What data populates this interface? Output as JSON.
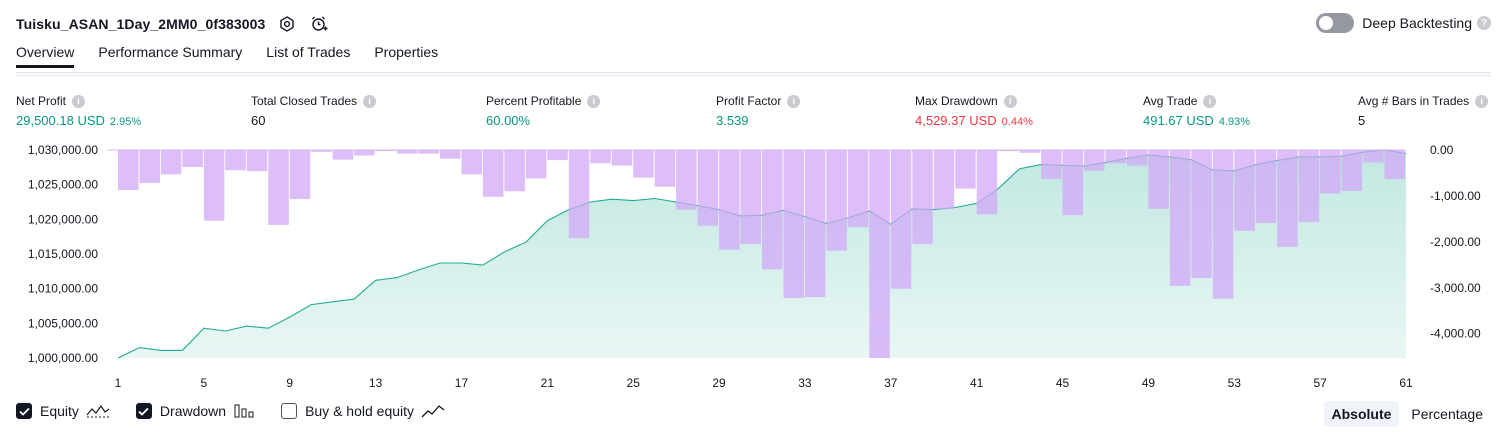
{
  "header": {
    "strategy_name": "Tuisku_ASAN_1Day_2MM0_0f383003",
    "deep_backtesting_label": "Deep Backtesting",
    "deep_backtesting_enabled": false
  },
  "tabs": [
    {
      "label": "Overview",
      "active": true
    },
    {
      "label": "Performance Summary",
      "active": false
    },
    {
      "label": "List of Trades",
      "active": false
    },
    {
      "label": "Properties",
      "active": false
    }
  ],
  "metrics": {
    "net_profit": {
      "label": "Net Profit",
      "value": "29,500.18 USD",
      "pct": "2.95%"
    },
    "total_closed_trades": {
      "label": "Total Closed Trades",
      "value": "60"
    },
    "percent_profitable": {
      "label": "Percent Profitable",
      "value": "60.00%"
    },
    "profit_factor": {
      "label": "Profit Factor",
      "value": "3.539"
    },
    "max_drawdown": {
      "label": "Max Drawdown",
      "value": "4,529.37 USD",
      "pct": "0.44%"
    },
    "avg_trade": {
      "label": "Avg Trade",
      "value": "491.67 USD",
      "pct": "4.93%"
    },
    "avg_bars": {
      "label": "Avg # Bars in Trades",
      "value": "5"
    }
  },
  "legend": {
    "equity": {
      "label": "Equity",
      "checked": true
    },
    "drawdown": {
      "label": "Drawdown",
      "checked": true
    },
    "buy_hold": {
      "label": "Buy & hold equity",
      "checked": false
    }
  },
  "modes": {
    "absolute": "Absolute",
    "percentage": "Percentage",
    "selected": "Absolute"
  },
  "colors": {
    "profit_green": "#089981",
    "loss_red": "#f23645",
    "equity_line": "#22ab94",
    "drawdown_bar": "#d1a8f7"
  },
  "chart_data": {
    "type": "area",
    "x_ticks": [
      "1",
      "5",
      "9",
      "13",
      "17",
      "21",
      "25",
      "29",
      "33",
      "37",
      "41",
      "45",
      "49",
      "53",
      "57",
      "61"
    ],
    "left_axis_ticks": [
      "1,030,000.00",
      "1,025,000.00",
      "1,020,000.00",
      "1,015,000.00",
      "1,010,000.00",
      "1,005,000.00",
      "1,000,000.00"
    ],
    "right_axis_ticks": [
      "0.00",
      "-1,000.00",
      "-2,000.00",
      "-3,000.00",
      "-4,000.00"
    ],
    "left_ylim": [
      1000000,
      1030000
    ],
    "right_ylim": [
      -4529.37,
      0
    ],
    "x_range": [
      1,
      61
    ],
    "series": [
      {
        "name": "Equity",
        "axis": "left",
        "x": [
          1,
          2,
          3,
          4,
          5,
          6,
          7,
          8,
          9,
          10,
          11,
          12,
          13,
          14,
          15,
          16,
          17,
          18,
          19,
          20,
          21,
          22,
          23,
          24,
          25,
          26,
          27,
          28,
          29,
          30,
          31,
          32,
          33,
          34,
          35,
          36,
          37,
          38,
          39,
          40,
          41,
          42,
          43,
          44,
          45,
          46,
          47,
          48,
          49,
          50,
          51,
          52,
          53,
          54,
          55,
          56,
          57,
          58,
          59,
          60,
          61
        ],
        "values": [
          1000000,
          1001500,
          1001100,
          1001100,
          1004300,
          1003900,
          1004600,
          1004300,
          1005900,
          1007700,
          1008100,
          1008500,
          1011200,
          1011600,
          1012700,
          1013700,
          1013700,
          1013400,
          1015300,
          1016700,
          1019800,
          1021400,
          1022500,
          1022900,
          1022700,
          1023000,
          1022500,
          1022000,
          1021400,
          1020500,
          1020600,
          1021300,
          1020400,
          1019400,
          1020200,
          1021200,
          1019300,
          1021500,
          1021400,
          1021700,
          1022300,
          1024400,
          1027300,
          1027900,
          1027800,
          1027700,
          1028200,
          1028800,
          1029300,
          1029000,
          1028600,
          1027100,
          1027000,
          1027900,
          1028500,
          1029000,
          1029000,
          1029100,
          1029700,
          1030000,
          1029500
        ]
      },
      {
        "name": "Drawdown",
        "axis": "right",
        "x": [
          2,
          3,
          4,
          5,
          6,
          7,
          8,
          9,
          10,
          11,
          12,
          13,
          14,
          15,
          16,
          17,
          18,
          19,
          20,
          21,
          22,
          23,
          24,
          25,
          26,
          27,
          28,
          29,
          30,
          31,
          32,
          33,
          34,
          35,
          36,
          37,
          38,
          39,
          40,
          41,
          42,
          43,
          44,
          45,
          46,
          47,
          48,
          49,
          50,
          51,
          52,
          53,
          54,
          55,
          56,
          57,
          58,
          59,
          60,
          61
        ],
        "values": [
          -870,
          -720,
          -530,
          -370,
          -1540,
          -440,
          -460,
          -1630,
          -1070,
          -40,
          -210,
          -120,
          -10,
          -80,
          -80,
          -190,
          -530,
          -1020,
          -900,
          -620,
          -220,
          -1920,
          -290,
          -340,
          -600,
          -800,
          -1300,
          -1650,
          -2170,
          -2050,
          -2600,
          -3220,
          -3200,
          -2190,
          -1680,
          -4529,
          -3020,
          -2050,
          -1290,
          -840,
          -1400,
          -20,
          -60,
          -630,
          -1420,
          -450,
          -290,
          -340,
          -1280,
          -2960,
          -2790,
          -3240,
          -1760,
          -1590,
          -2110,
          -1570,
          -950,
          -890,
          -270,
          -630
        ]
      }
    ],
    "legend": [
      "Equity",
      "Drawdown",
      "Buy & hold equity"
    ]
  }
}
